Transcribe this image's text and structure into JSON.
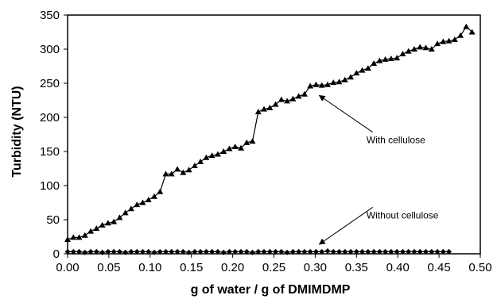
{
  "chart_data": {
    "type": "line",
    "xlabel": "g of water / g of DMIMDMP",
    "ylabel": "Turbidity (NTU)",
    "xlim": [
      0,
      0.5
    ],
    "ylim": [
      0,
      350
    ],
    "xticks": [
      "0.00",
      "0.05",
      "0.10",
      "0.15",
      "0.20",
      "0.25",
      "0.30",
      "0.35",
      "0.40",
      "0.45",
      "0.50"
    ],
    "yticks": [
      "0",
      "50",
      "100",
      "150",
      "200",
      "250",
      "300",
      "350"
    ],
    "grid": false,
    "legend": "none",
    "annotations": [
      {
        "text": "With cellulose",
        "x": 0.362,
        "y": 162,
        "arrow_to": [
          0.305,
          232
        ]
      },
      {
        "text": "Without cellulose",
        "x": 0.362,
        "y": 52,
        "arrow_to": [
          0.305,
          14
        ]
      }
    ],
    "series": [
      {
        "marker": "triangle",
        "color": "#000000",
        "x": [
          0.0,
          0.007,
          0.014,
          0.021,
          0.028,
          0.035,
          0.042,
          0.049,
          0.056,
          0.063,
          0.07,
          0.077,
          0.084,
          0.091,
          0.098,
          0.105,
          0.112,
          0.119,
          0.126,
          0.133,
          0.14,
          0.147,
          0.154,
          0.161,
          0.168,
          0.175,
          0.182,
          0.189,
          0.196,
          0.203,
          0.21,
          0.217,
          0.224,
          0.231,
          0.238,
          0.245,
          0.252,
          0.259,
          0.266,
          0.273,
          0.28,
          0.287,
          0.294,
          0.301,
          0.308,
          0.315,
          0.322,
          0.329,
          0.336,
          0.343,
          0.35,
          0.357,
          0.364,
          0.371,
          0.378,
          0.385,
          0.392,
          0.399,
          0.406,
          0.413,
          0.42,
          0.427,
          0.434,
          0.441,
          0.448,
          0.455,
          0.462,
          0.469,
          0.476,
          0.483,
          0.49
        ],
        "y": [
          21,
          24,
          24,
          27,
          33,
          37,
          42,
          45,
          47,
          53,
          60,
          66,
          72,
          75,
          79,
          84,
          91,
          117,
          117,
          124,
          119,
          123,
          129,
          135,
          141,
          144,
          146,
          150,
          154,
          157,
          155,
          163,
          165,
          208,
          212,
          214,
          219,
          226,
          224,
          227,
          231,
          234,
          246,
          248,
          247,
          248,
          251,
          252,
          255,
          259,
          265,
          269,
          272,
          279,
          283,
          285,
          286,
          287,
          293,
          297,
          300,
          303,
          302,
          300,
          308,
          311,
          312,
          314,
          320,
          333,
          325
        ]
      },
      {
        "marker": "diamond",
        "color": "#000000",
        "x": [
          0.0,
          0.007,
          0.014,
          0.021,
          0.028,
          0.035,
          0.042,
          0.049,
          0.056,
          0.063,
          0.07,
          0.077,
          0.084,
          0.091,
          0.098,
          0.105,
          0.112,
          0.119,
          0.126,
          0.133,
          0.14,
          0.147,
          0.154,
          0.161,
          0.168,
          0.175,
          0.182,
          0.189,
          0.196,
          0.203,
          0.21,
          0.217,
          0.224,
          0.231,
          0.238,
          0.245,
          0.252,
          0.259,
          0.266,
          0.273,
          0.28,
          0.287,
          0.294,
          0.301,
          0.308,
          0.315,
          0.322,
          0.329,
          0.336,
          0.343,
          0.35,
          0.357,
          0.364,
          0.371,
          0.378,
          0.385,
          0.392,
          0.399,
          0.406,
          0.413,
          0.42,
          0.427,
          0.434,
          0.441,
          0.448,
          0.455,
          0.462
        ],
        "y": [
          3,
          3,
          3,
          2,
          3,
          3,
          2,
          3,
          3,
          3,
          2,
          3,
          3,
          3,
          3,
          2,
          3,
          3,
          3,
          3,
          3,
          2,
          3,
          3,
          3,
          3,
          3,
          2,
          3,
          3,
          3,
          3,
          2,
          3,
          3,
          3,
          3,
          3,
          2,
          3,
          3,
          3,
          3,
          3,
          3,
          4,
          3,
          3,
          3,
          3,
          3,
          3,
          3,
          3,
          3,
          3,
          3,
          3,
          3,
          3,
          3,
          3,
          3,
          3,
          3,
          3,
          3
        ]
      }
    ]
  }
}
